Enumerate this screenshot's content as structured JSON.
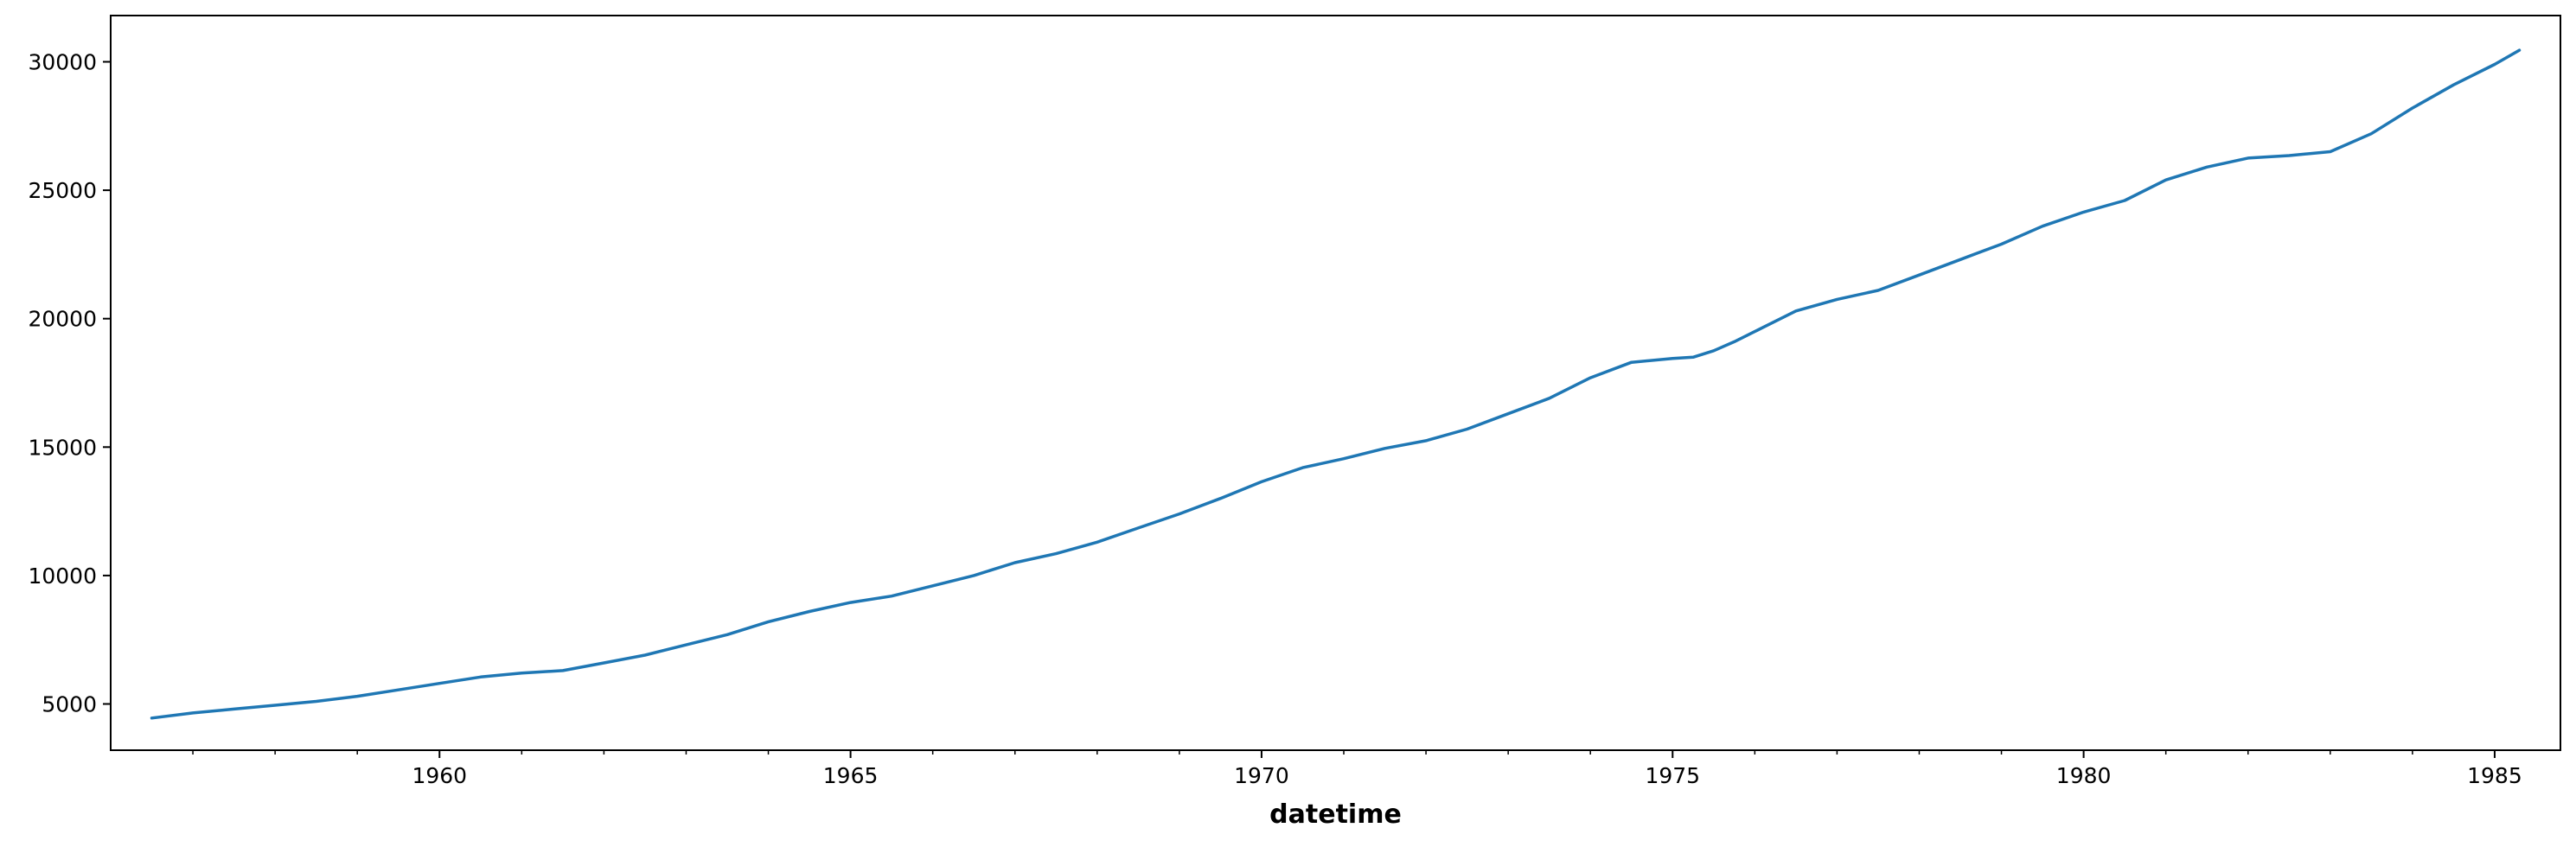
{
  "chart_data": {
    "type": "line",
    "title": "",
    "xlabel": "datetime",
    "ylabel": "",
    "x_type": "date-year",
    "xlim": [
      1956.0,
      1985.8
    ],
    "ylim": [
      3200,
      31800
    ],
    "x_ticks": [
      1960,
      1965,
      1970,
      1975,
      1980,
      1985
    ],
    "x_tick_labels": [
      "1960",
      "1965",
      "1970",
      "1975",
      "1980",
      "1985"
    ],
    "x_minor_ticks": [
      1957,
      1958,
      1959,
      1961,
      1962,
      1963,
      1964,
      1966,
      1967,
      1968,
      1969,
      1971,
      1972,
      1973,
      1974,
      1976,
      1977,
      1978,
      1979,
      1981,
      1982,
      1983,
      1984
    ],
    "y_ticks": [
      5000,
      10000,
      15000,
      20000,
      25000,
      30000
    ],
    "y_tick_labels": [
      "5000",
      "10000",
      "15000",
      "20000",
      "25000",
      "30000"
    ],
    "grid": false,
    "legend": "none",
    "colors": {
      "line": "#1f77b4",
      "axes": "#000000"
    },
    "series": [
      {
        "x": [
          1956.5,
          1957.0,
          1957.5,
          1958.0,
          1958.5,
          1959.0,
          1959.5,
          1960.0,
          1960.5,
          1961.0,
          1961.5,
          1962.0,
          1962.5,
          1963.0,
          1963.5,
          1964.0,
          1964.5,
          1965.0,
          1965.5,
          1966.0,
          1966.5,
          1967.0,
          1967.5,
          1968.0,
          1968.5,
          1969.0,
          1969.5,
          1970.0,
          1970.5,
          1971.0,
          1971.5,
          1972.0,
          1972.5,
          1973.0,
          1973.5,
          1974.0,
          1974.5,
          1975.0,
          1975.25,
          1975.5,
          1975.75,
          1976.0,
          1976.5,
          1977.0,
          1977.5,
          1978.0,
          1978.5,
          1979.0,
          1979.5,
          1980.0,
          1980.5,
          1981.0,
          1981.5,
          1982.0,
          1982.5,
          1983.0,
          1983.5,
          1984.0,
          1984.5,
          1985.0,
          1985.3
        ],
        "y": [
          4450,
          4650,
          4800,
          4950,
          5100,
          5300,
          5550,
          5800,
          6050,
          6200,
          6300,
          6600,
          6900,
          7300,
          7700,
          8200,
          8600,
          8950,
          9200,
          9600,
          10000,
          10500,
          10850,
          11300,
          11850,
          12400,
          13000,
          13650,
          14200,
          14550,
          14950,
          15250,
          15700,
          16300,
          16900,
          17700,
          18300,
          18450,
          18500,
          18750,
          19100,
          19500,
          20300,
          20750,
          21100,
          21700,
          22300,
          22900,
          23600,
          24150,
          24600,
          25400,
          25900,
          26250,
          26350,
          26500,
          27200,
          28200,
          29100,
          29900,
          30450
        ]
      }
    ]
  }
}
